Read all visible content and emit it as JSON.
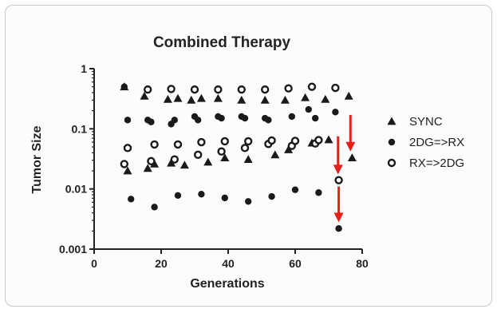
{
  "chart_data": {
    "type": "scatter",
    "title": "Combined Therapy",
    "xlabel": "Generations",
    "ylabel": "Tumor Size",
    "xlim": [
      0,
      80
    ],
    "ylim": [
      0.001,
      1
    ],
    "yscale": "log",
    "grid": false,
    "legend_position": "right",
    "x_ticks": [
      0,
      20,
      40,
      60,
      80
    ],
    "y_ticks": [
      0.001,
      0.01,
      0.1,
      1
    ],
    "x_tick_labels": [
      "0",
      "20",
      "40",
      "60",
      "80"
    ],
    "y_tick_labels": [
      "0.001",
      "0.01",
      "0.1",
      "1"
    ],
    "series": [
      {
        "name": "SYNC",
        "marker": "triangle",
        "points": [
          {
            "x": 9,
            "y": 0.5
          },
          {
            "x": 10,
            "y": 0.02
          },
          {
            "x": 15,
            "y": 0.35
          },
          {
            "x": 16,
            "y": 0.022
          },
          {
            "x": 18,
            "y": 0.026
          },
          {
            "x": 22,
            "y": 0.31
          },
          {
            "x": 23,
            "y": 0.027
          },
          {
            "x": 25,
            "y": 0.32
          },
          {
            "x": 27,
            "y": 0.025
          },
          {
            "x": 29,
            "y": 0.3
          },
          {
            "x": 32,
            "y": 0.32
          },
          {
            "x": 34,
            "y": 0.028
          },
          {
            "x": 37,
            "y": 0.32
          },
          {
            "x": 39,
            "y": 0.033
          },
          {
            "x": 44,
            "y": 0.3
          },
          {
            "x": 46,
            "y": 0.031
          },
          {
            "x": 51,
            "y": 0.3
          },
          {
            "x": 54,
            "y": 0.037
          },
          {
            "x": 57,
            "y": 0.3
          },
          {
            "x": 58,
            "y": 0.045
          },
          {
            "x": 63,
            "y": 0.33
          },
          {
            "x": 65,
            "y": 0.058
          },
          {
            "x": 69,
            "y": 0.31
          },
          {
            "x": 70,
            "y": 0.066
          },
          {
            "x": 76,
            "y": 0.35
          },
          {
            "x": 77,
            "y": 0.033
          }
        ]
      },
      {
        "name": "2DG=>RX",
        "marker": "filled-circle",
        "points": [
          {
            "x": 9,
            "y": 0.5
          },
          {
            "x": 10,
            "y": 0.14
          },
          {
            "x": 11,
            "y": 0.0068
          },
          {
            "x": 16,
            "y": 0.14
          },
          {
            "x": 17,
            "y": 0.13
          },
          {
            "x": 18,
            "y": 0.005
          },
          {
            "x": 23,
            "y": 0.12
          },
          {
            "x": 24,
            "y": 0.14
          },
          {
            "x": 25,
            "y": 0.0078
          },
          {
            "x": 30,
            "y": 0.16
          },
          {
            "x": 31,
            "y": 0.14
          },
          {
            "x": 32,
            "y": 0.0082
          },
          {
            "x": 37,
            "y": 0.16
          },
          {
            "x": 38,
            "y": 0.15
          },
          {
            "x": 39,
            "y": 0.0071
          },
          {
            "x": 44,
            "y": 0.16
          },
          {
            "x": 45,
            "y": 0.15
          },
          {
            "x": 46,
            "y": 0.0062
          },
          {
            "x": 51,
            "y": 0.15
          },
          {
            "x": 52,
            "y": 0.14
          },
          {
            "x": 53,
            "y": 0.0075
          },
          {
            "x": 59,
            "y": 0.16
          },
          {
            "x": 60,
            "y": 0.0097
          },
          {
            "x": 64,
            "y": 0.21
          },
          {
            "x": 66,
            "y": 0.15
          },
          {
            "x": 67,
            "y": 0.0087
          },
          {
            "x": 72,
            "y": 0.19
          },
          {
            "x": 73,
            "y": 0.0022
          }
        ]
      },
      {
        "name": "RX=>2DG",
        "marker": "open-circle",
        "points": [
          {
            "x": 9,
            "y": 0.026
          },
          {
            "x": 10,
            "y": 0.048
          },
          {
            "x": 16,
            "y": 0.45
          },
          {
            "x": 17,
            "y": 0.029
          },
          {
            "x": 18,
            "y": 0.055
          },
          {
            "x": 23,
            "y": 0.46
          },
          {
            "x": 24,
            "y": 0.031
          },
          {
            "x": 25,
            "y": 0.055
          },
          {
            "x": 30,
            "y": 0.45
          },
          {
            "x": 31,
            "y": 0.037
          },
          {
            "x": 32,
            "y": 0.06
          },
          {
            "x": 37,
            "y": 0.45
          },
          {
            "x": 38,
            "y": 0.042
          },
          {
            "x": 39,
            "y": 0.062
          },
          {
            "x": 44,
            "y": 0.45
          },
          {
            "x": 45,
            "y": 0.048
          },
          {
            "x": 46,
            "y": 0.062
          },
          {
            "x": 51,
            "y": 0.45
          },
          {
            "x": 52,
            "y": 0.056
          },
          {
            "x": 53,
            "y": 0.064
          },
          {
            "x": 58,
            "y": 0.47
          },
          {
            "x": 59,
            "y": 0.052
          },
          {
            "x": 60,
            "y": 0.063
          },
          {
            "x": 65,
            "y": 0.5
          },
          {
            "x": 66,
            "y": 0.057
          },
          {
            "x": 67,
            "y": 0.065
          },
          {
            "x": 72,
            "y": 0.48
          },
          {
            "x": 73,
            "y": 0.014
          }
        ]
      }
    ],
    "annotations": [
      {
        "type": "arrow",
        "color": "#e32119",
        "x": 76.5,
        "y_from": 0.17,
        "y_to": 0.042
      },
      {
        "type": "arrow",
        "color": "#e32119",
        "x": 72.8,
        "y_from": 0.075,
        "y_to": 0.0175
      },
      {
        "type": "arrow",
        "color": "#e32119",
        "x": 73,
        "y_from": 0.011,
        "y_to": 0.0028
      }
    ]
  }
}
